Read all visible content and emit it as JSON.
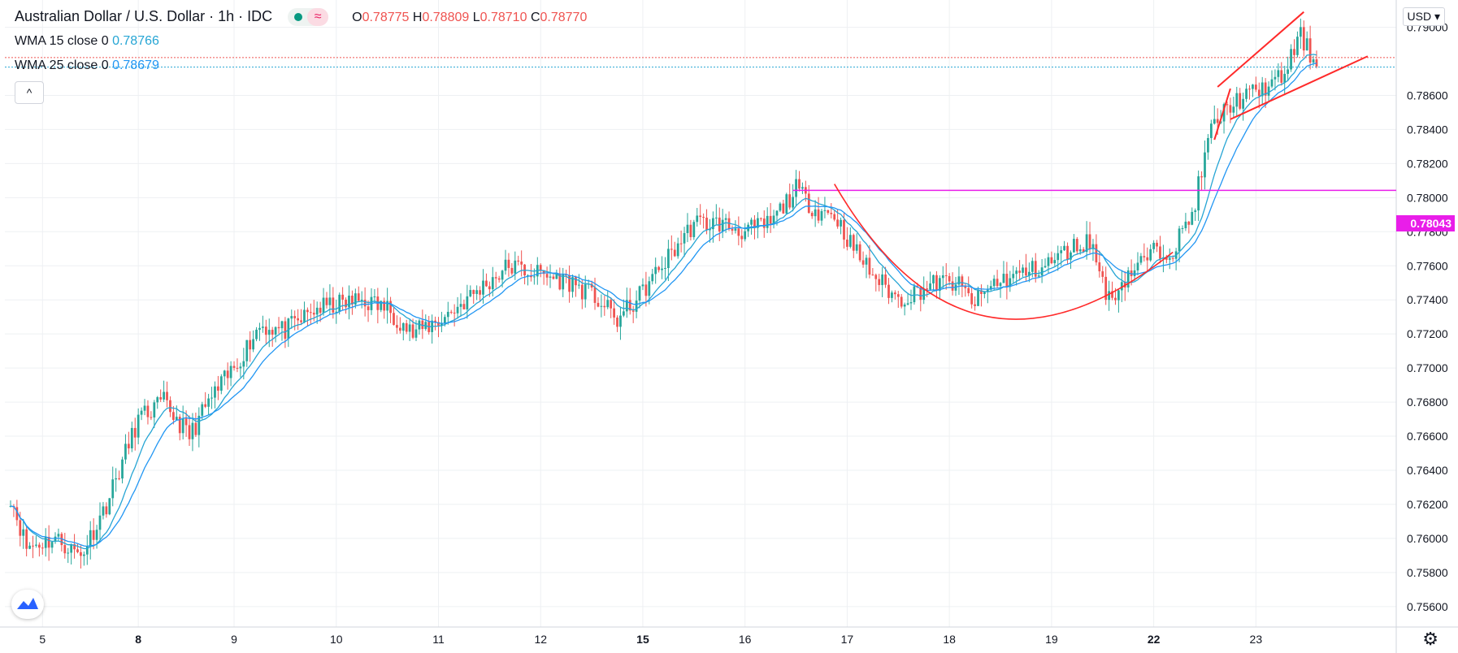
{
  "header": {
    "title": "Australian Dollar / U.S. Dollar · 1h · IDC",
    "ohlc": [
      {
        "key": "O",
        "value": "0.78775"
      },
      {
        "key": "H",
        "value": "0.78809"
      },
      {
        "key": "L",
        "value": "0.78710"
      },
      {
        "key": "C",
        "value": "0.78770"
      }
    ],
    "wave_icon": "≈",
    "collapse_icon": "^",
    "status_icon": "status-dot-icon"
  },
  "indicators": {
    "wma15": {
      "label": "WMA 15 close 0",
      "value": "0.78766",
      "color": "#26a5d4"
    },
    "wma25": {
      "label": "WMA 25 close 0",
      "value": "0.78679",
      "color": "#2196f3"
    }
  },
  "currency_button": {
    "label": "USD",
    "icon": "chevron-down-icon"
  },
  "logo": {
    "name": "tradingview-logo-icon"
  },
  "settings": {
    "icon": "gear-icon",
    "glyph": "⚙"
  },
  "colors": {
    "up": "#26a69a",
    "down": "#ef5350",
    "level": "#e91ee9",
    "pattern": "#ff2a2a",
    "grid": "#eef0f3"
  },
  "chart_data": {
    "type": "candlestick",
    "symbol": "Australian Dollar / U.S. Dollar",
    "interval": "1h",
    "x_tick_labels": [
      "5",
      "8",
      "9",
      "10",
      "11",
      "12",
      "15",
      "16",
      "17",
      "18",
      "19",
      "22",
      "23"
    ],
    "y_tick_labels": [
      "0.79000",
      "0.78600",
      "0.78400",
      "0.78200",
      "0.78000",
      "0.77800",
      "0.77600",
      "0.77400",
      "0.77200",
      "0.77000",
      "0.76800",
      "0.76600",
      "0.76400",
      "0.76200",
      "0.76000",
      "0.75800",
      "0.75600"
    ],
    "ylim": [
      0.7548,
      0.7916
    ],
    "grid": true,
    "level_line": {
      "value": 0.78043,
      "label": "0.78043"
    },
    "current_price_line": 0.7877,
    "wma15_line_value": 0.78766,
    "series_path_note": "approximate hourly path",
    "key_points": [
      [
        0,
        0.7625
      ],
      [
        5,
        0.7595
      ],
      [
        14,
        0.76
      ],
      [
        22,
        0.759
      ],
      [
        30,
        0.762
      ],
      [
        40,
        0.767
      ],
      [
        48,
        0.768
      ],
      [
        56,
        0.766
      ],
      [
        62,
        0.768
      ],
      [
        70,
        0.77
      ],
      [
        78,
        0.7725
      ],
      [
        86,
        0.7722
      ],
      [
        96,
        0.7735
      ],
      [
        110,
        0.774
      ],
      [
        118,
        0.7735
      ],
      [
        126,
        0.772
      ],
      [
        136,
        0.773
      ],
      [
        146,
        0.7745
      ],
      [
        156,
        0.776
      ],
      [
        166,
        0.7755
      ],
      [
        176,
        0.775
      ],
      [
        184,
        0.774
      ],
      [
        190,
        0.7728
      ],
      [
        196,
        0.774
      ],
      [
        206,
        0.7765
      ],
      [
        214,
        0.7785
      ],
      [
        222,
        0.7785
      ],
      [
        230,
        0.778
      ],
      [
        238,
        0.7785
      ],
      [
        246,
        0.7805
      ],
      [
        252,
        0.7793
      ],
      [
        258,
        0.779
      ],
      [
        264,
        0.777
      ],
      [
        270,
        0.7755
      ],
      [
        278,
        0.774
      ],
      [
        284,
        0.7745
      ],
      [
        290,
        0.775
      ],
      [
        296,
        0.775
      ],
      [
        302,
        0.7738
      ],
      [
        308,
        0.775
      ],
      [
        316,
        0.7755
      ],
      [
        324,
        0.776
      ],
      [
        332,
        0.777
      ],
      [
        338,
        0.7775
      ],
      [
        344,
        0.774
      ],
      [
        350,
        0.7755
      ],
      [
        358,
        0.7768
      ],
      [
        364,
        0.777
      ],
      [
        370,
        0.779
      ],
      [
        376,
        0.784
      ],
      [
        382,
        0.7855
      ],
      [
        390,
        0.7862
      ],
      [
        398,
        0.787
      ],
      [
        404,
        0.7895
      ],
      [
        409,
        0.7877
      ]
    ],
    "annotations": [
      {
        "name": "rounded-bottom",
        "points": [
          [
            258,
            0.7808
          ],
          [
            300,
            0.7718
          ],
          [
            364,
            0.7768
          ]
        ]
      },
      {
        "name": "wedge-upper",
        "from": [
          378,
          0.7865
        ],
        "to": [
          405,
          0.7909
        ]
      },
      {
        "name": "wedge-lower",
        "from": [
          382,
          0.7846
        ],
        "to": [
          425,
          0.7883
        ]
      },
      {
        "name": "breakout-stroke",
        "from": [
          377,
          0.7834
        ],
        "to": [
          382,
          0.7864
        ]
      }
    ],
    "x_tick_index": [
      10,
      40,
      70,
      102,
      134,
      166,
      198,
      230,
      262,
      294,
      326,
      358,
      390
    ]
  }
}
